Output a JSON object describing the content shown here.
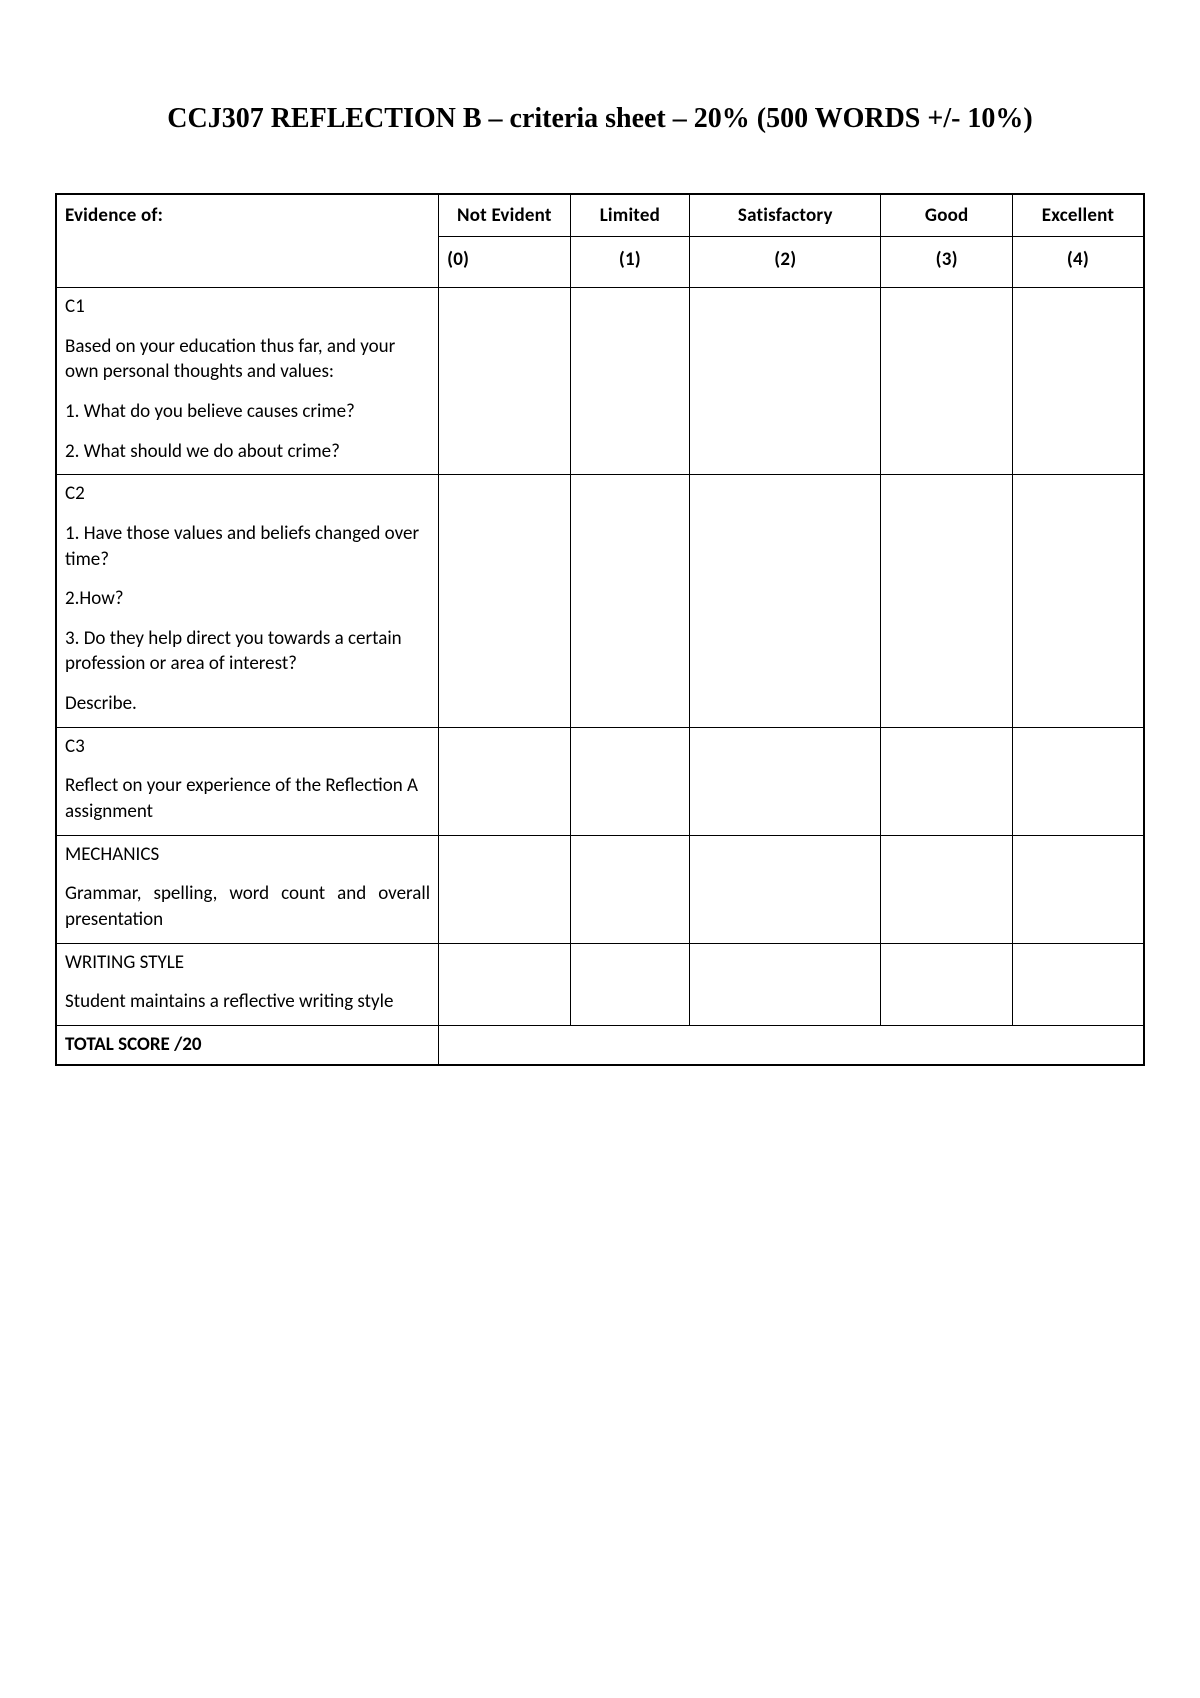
{
  "title": "CCJ307 REFLECTION B – criteria sheet – 20% (500 WORDS +/- 10%)",
  "columns": {
    "criteria_header": "Evidence of:",
    "levels": [
      {
        "label": "Not Evident",
        "score": "(0)"
      },
      {
        "label": "Limited",
        "score": "(1)"
      },
      {
        "label": "Satisfactory",
        "score": "(2)"
      },
      {
        "label": "Good",
        "score": "(3)"
      },
      {
        "label": "Excellent",
        "score": "(4)"
      }
    ]
  },
  "rows": {
    "c1": {
      "label": "C1",
      "paras": [
        "Based on your education thus far, and your own personal thoughts and values:",
        "1. What do you believe causes crime?",
        "2. What should we do about crime?"
      ]
    },
    "c2": {
      "label": "C2",
      "paras": [
        "1. Have those values and beliefs changed over time?",
        "2.How?",
        "3. Do they help direct you towards a certain profession or area of interest?",
        "Describe."
      ]
    },
    "c3": {
      "label": "C3",
      "paras": [
        "Reflect on your experience of the Reflection A assignment"
      ]
    },
    "mechanics": {
      "label": "MECHANICS",
      "paras": [
        "Grammar, spelling, word count and overall presentation"
      ]
    },
    "writing_style": {
      "label": "WRITING STYLE",
      "paras": [
        "Student maintains a reflective writing style"
      ]
    }
  },
  "total_label": "TOTAL SCORE /20",
  "colors": {
    "text": "#000000",
    "background": "#ffffff",
    "border": "#000000"
  }
}
